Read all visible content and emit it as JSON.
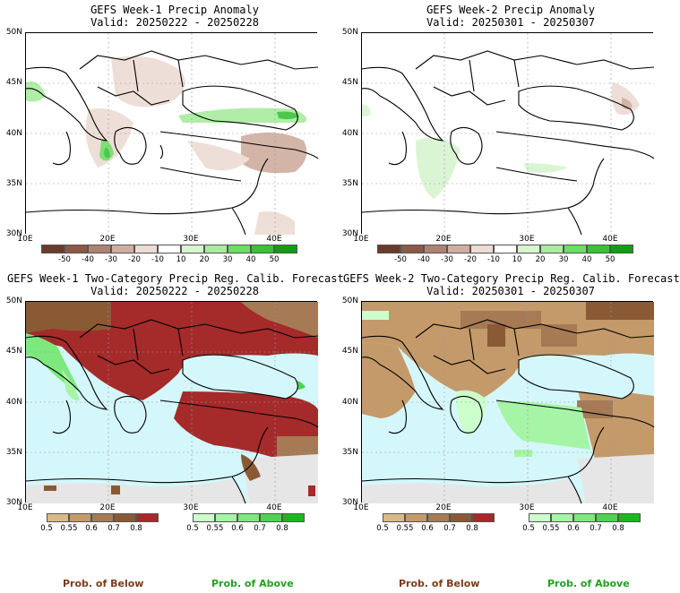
{
  "panels": {
    "p1": {
      "title": "GEFS Week-1 Precip Anomaly",
      "valid": "Valid: 20250222 - 20250228"
    },
    "p2": {
      "title": "GEFS Week-2 Precip Anomaly",
      "valid": "Valid: 20250301 - 20250307"
    },
    "p3": {
      "title": "GEFS Week-1 Two-Category Precip Reg. Calib. Forecast",
      "valid": "Valid: 20250222 - 20250228"
    },
    "p4": {
      "title": "GEFS Week-2 Two-Category Precip Reg. Calib. Forecast",
      "valid": "Valid: 20250301 - 20250307"
    }
  },
  "axes": {
    "lat_labels": [
      "50N",
      "45N",
      "40N",
      "35N",
      "30N"
    ],
    "lon_labels": [
      "10E",
      "20E",
      "30E",
      "40E"
    ]
  },
  "anomaly_colorbar": {
    "labels": [
      "-50",
      "-40",
      "-30",
      "-20",
      "-10",
      "10",
      "20",
      "30",
      "40",
      "50"
    ],
    "colors": [
      "#6b3a2a",
      "#8c5a44",
      "#ad8272",
      "#cfae9f",
      "#ecdcd3",
      "#ffffff",
      "#d6f5d0",
      "#a8ec9e",
      "#6fdc66",
      "#38c238",
      "#0f9e0f"
    ]
  },
  "prob_colorbars": {
    "below": {
      "labels": [
        "0.5",
        "0.55",
        "0.6",
        "0.7",
        "0.8"
      ],
      "colors": [
        "#d9b98a",
        "#c49a6a",
        "#a57a55",
        "#8a5a35",
        "#a52a2a"
      ]
    },
    "above": {
      "labels": [
        "0.5",
        "0.55",
        "0.6",
        "0.7",
        "0.8"
      ],
      "colors": [
        "#ccffcc",
        "#a6f5a6",
        "#7de87d",
        "#4fd34f",
        "#1bb81b"
      ]
    }
  },
  "footer": {
    "below_label": "Prob. of Below",
    "above_label": "Prob. of Above"
  },
  "colors": {
    "sea": "#d4f7fb",
    "no_skill": "#e6e6e6",
    "coast": "#000000",
    "footer_below": "#7a3b1a",
    "footer_above": "#1fa31f"
  }
}
